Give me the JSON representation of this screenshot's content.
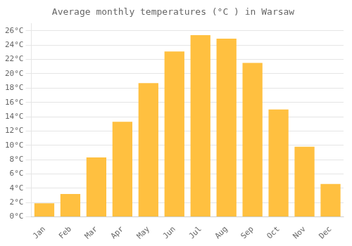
{
  "chart_data": {
    "type": "bar",
    "title": "Average monthly temperatures (°C ) in Warsaw",
    "categories": [
      "Jan",
      "Feb",
      "Mar",
      "Apr",
      "May",
      "Jun",
      "Jul",
      "Aug",
      "Sep",
      "Oct",
      "Nov",
      "Dec"
    ],
    "values": [
      1.9,
      3.2,
      8.3,
      13.3,
      18.7,
      23.1,
      25.4,
      24.9,
      21.5,
      15.0,
      9.8,
      4.6
    ],
    "color": "#FFC040",
    "ylim": [
      0,
      27
    ],
    "yticks": [
      {
        "value": 0,
        "label": "0°C"
      },
      {
        "value": 2,
        "label": "2°C"
      },
      {
        "value": 4,
        "label": "4°C"
      },
      {
        "value": 6,
        "label": "6°C"
      },
      {
        "value": 8,
        "label": "8°C"
      },
      {
        "value": 10,
        "label": "10°C"
      },
      {
        "value": 12,
        "label": "12°C"
      },
      {
        "value": 14,
        "label": "14°C"
      },
      {
        "value": 16,
        "label": "16°C"
      },
      {
        "value": 18,
        "label": "18°C"
      },
      {
        "value": 20,
        "label": "20°C"
      },
      {
        "value": 22,
        "label": "22°C"
      },
      {
        "value": 24,
        "label": "24°C"
      },
      {
        "value": 26,
        "label": "26°C"
      }
    ],
    "grid": true
  }
}
